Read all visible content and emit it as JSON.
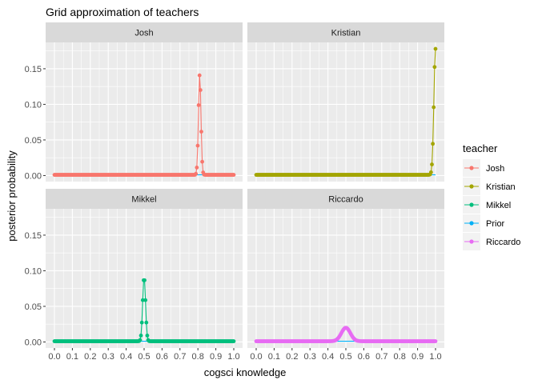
{
  "chart_data": {
    "type": "line",
    "title": "Grid approximation of teachers",
    "xlabel": "cogsci knowledge",
    "ylabel": "posterior probability",
    "xlim": [
      0,
      1
    ],
    "ylim": [
      0,
      0.18
    ],
    "x_ticks": [
      "0.0",
      "0.1",
      "0.2",
      "0.3",
      "0.4",
      "0.5",
      "0.6",
      "0.7",
      "0.8",
      "0.9",
      "1.0"
    ],
    "y_ticks": [
      "0.00",
      "0.05",
      "0.10",
      "0.15"
    ],
    "grid": true,
    "legend_position": "right",
    "legend_title": "teacher",
    "panels": [
      {
        "label": "Josh",
        "series": [
          "Josh",
          "Prior"
        ]
      },
      {
        "label": "Kristian",
        "series": [
          "Kristian",
          "Prior"
        ]
      },
      {
        "label": "Mikkel",
        "series": [
          "Mikkel",
          "Prior"
        ]
      },
      {
        "label": "Riccardo",
        "series": [
          "Riccardo",
          "Prior"
        ]
      }
    ],
    "series": [
      {
        "name": "Josh",
        "color": "#F8766D",
        "peak_x": 0.81,
        "peak_y": 0.142,
        "width": 0.007,
        "prior": 0.001
      },
      {
        "name": "Kristian",
        "color": "#A3A500",
        "peak_x": 1.0,
        "peak_y": 0.178,
        "width": 0.009,
        "prior": 0.001
      },
      {
        "name": "Mikkel",
        "color": "#00BF7D",
        "peak_x": 0.5,
        "peak_y": 0.091,
        "width": 0.008,
        "prior": 0.001
      },
      {
        "name": "Prior",
        "color": "#00B0F6",
        "value": 0.001
      },
      {
        "name": "Riccardo",
        "color": "#E76BF3",
        "peak_x": 0.5,
        "peak_y": 0.02,
        "width": 0.025,
        "prior": 0.001
      }
    ]
  }
}
